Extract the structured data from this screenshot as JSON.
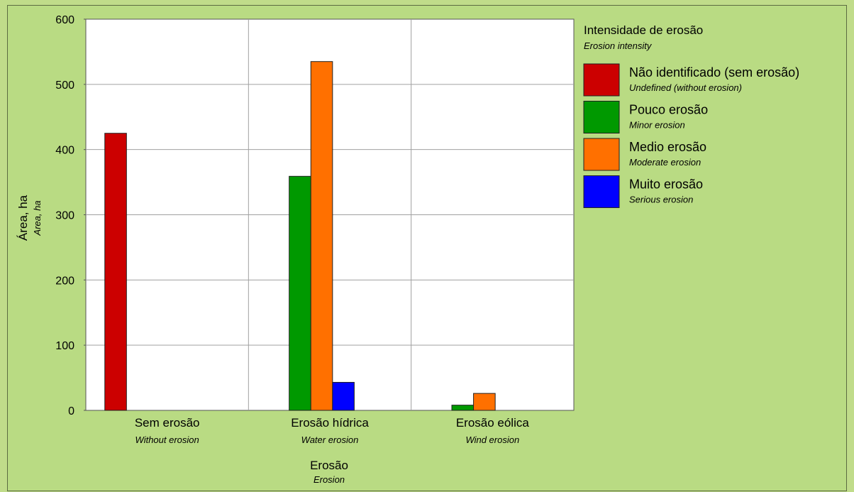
{
  "chart_data": {
    "type": "bar",
    "categories": [
      "Sem erosão",
      "Erosão hídrica",
      "Erosão eólica"
    ],
    "categories_en": [
      "Without erosion",
      "Water erosion",
      "Wind erosion"
    ],
    "series": [
      {
        "name": "Não identificado (sem erosão)",
        "name_en": "Undefined (without erosion)",
        "color": "#cc0000",
        "values": [
          425,
          0,
          0
        ]
      },
      {
        "name": "Pouco erosão",
        "name_en": "Minor erosion",
        "color": "#009900",
        "values": [
          0,
          359,
          8
        ]
      },
      {
        "name": "Medio erosão",
        "name_en": "Moderate erosion",
        "color": "#ff7000",
        "values": [
          0,
          535,
          26
        ]
      },
      {
        "name": "Muito erosão",
        "name_en": "Serious erosion",
        "color": "#0000ff",
        "values": [
          0,
          43,
          0
        ]
      }
    ],
    "ylim": [
      0,
      600
    ],
    "yticks": [
      0,
      100,
      200,
      300,
      400,
      500,
      600
    ],
    "xlabel": "Erosão",
    "xlabel_en": "Erosion",
    "ylabel": "Área, ha",
    "ylabel_en": "Area, ha",
    "legend_title": "Intensidade de erosão",
    "legend_subtitle": "Erosion intensity",
    "grid": true,
    "legend_position": "right"
  }
}
